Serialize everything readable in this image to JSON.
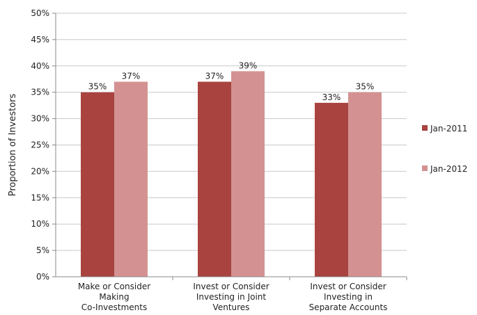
{
  "chart_data": {
    "type": "bar",
    "title": "",
    "xlabel": "",
    "ylabel": "Proportion of Investors",
    "ylim": [
      0,
      50
    ],
    "yticks": [
      "0%",
      "5%",
      "10%",
      "15%",
      "20%",
      "25%",
      "30%",
      "35%",
      "40%",
      "45%",
      "50%"
    ],
    "grid": true,
    "legend_position": "right",
    "categories": [
      [
        "Make or Consider",
        "Making",
        "Co-Investments"
      ],
      [
        "Invest or Consider",
        "Investing in Joint",
        "Ventures"
      ],
      [
        "Invest or Consider",
        "Investing in",
        "Separate Accounts"
      ]
    ],
    "series": [
      {
        "name": "Jan-2011",
        "color": "#a8433f",
        "values": [
          35,
          37,
          33
        ],
        "labels": [
          "35%",
          "37%",
          "33%"
        ]
      },
      {
        "name": "Jan-2012",
        "color": "#d39291",
        "values": [
          37,
          39,
          35
        ],
        "labels": [
          "37%",
          "39%",
          "35%"
        ]
      }
    ]
  }
}
